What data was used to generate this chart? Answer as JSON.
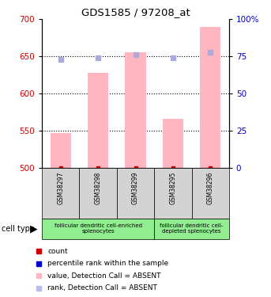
{
  "title": "GDS1585 / 97208_at",
  "samples": [
    "GSM38297",
    "GSM38298",
    "GSM38299",
    "GSM38295",
    "GSM38296"
  ],
  "bar_values": [
    547,
    628,
    656,
    566,
    690
  ],
  "rank_values": [
    73,
    74,
    76,
    74,
    78
  ],
  "ylim_left": [
    500,
    700
  ],
  "ylim_right": [
    0,
    100
  ],
  "yticks_left": [
    500,
    550,
    600,
    650,
    700
  ],
  "yticks_right": [
    0,
    25,
    50,
    75,
    100
  ],
  "bar_color": "#FFB6C1",
  "rank_color": "#AAAADD",
  "count_color": "#CC0000",
  "pct_rank_color": "#0000CC",
  "groups": [
    {
      "label": "follicular dendritic cell-enriched\nsplenocytes",
      "n_samples": 3,
      "color": "#90EE90"
    },
    {
      "label": "follicular dendritic cell-\ndepleted splenocytes",
      "n_samples": 2,
      "color": "#90EE90"
    }
  ],
  "cell_type_label": "cell type",
  "legend_items": [
    {
      "color": "#CC0000",
      "label": "count"
    },
    {
      "color": "#0000CC",
      "label": "percentile rank within the sample"
    },
    {
      "color": "#FFB6C1",
      "label": "value, Detection Call = ABSENT"
    },
    {
      "color": "#BBBBEE",
      "label": "rank, Detection Call = ABSENT"
    }
  ]
}
